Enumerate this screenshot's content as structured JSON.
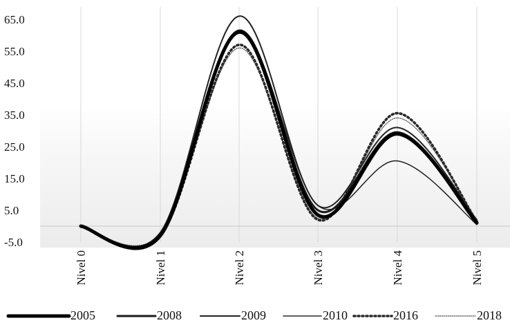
{
  "chart_data": {
    "type": "line",
    "categories": [
      "Nivel 0",
      "Nivel 1",
      "Nivel 2",
      "Nivel 3",
      "Nivel 4",
      "Nivel 5"
    ],
    "y_ticks": [
      "65.0",
      "55.0",
      "45.0",
      "35.0",
      "25.0",
      "15.0",
      "5.0",
      "-5.0"
    ],
    "ylim": [
      -5,
      65
    ],
    "series": [
      {
        "name": "2005",
        "values": [
          0.0,
          -3.0,
          61.0,
          3.5,
          29.0,
          1.0
        ]
      },
      {
        "name": "2008",
        "values": [
          0.0,
          -2.5,
          61.5,
          5.0,
          29.5,
          1.5
        ]
      },
      {
        "name": "2009",
        "values": [
          0.0,
          -2.0,
          66.0,
          6.5,
          31.0,
          2.0
        ]
      },
      {
        "name": "2010",
        "values": [
          0.0,
          -3.5,
          61.0,
          6.5,
          20.5,
          0.5
        ]
      },
      {
        "name": "2016",
        "values": [
          0.0,
          -3.0,
          57.0,
          2.0,
          35.5,
          1.5
        ]
      },
      {
        "name": "2018",
        "values": [
          0.0,
          -2.5,
          56.0,
          2.5,
          34.0,
          2.0
        ]
      }
    ],
    "styles": {
      "2005": {
        "color": "#000000",
        "width": 5.0,
        "dash": ""
      },
      "2008": {
        "color": "#1a1a1a",
        "width": 3.0,
        "dash": ""
      },
      "2009": {
        "color": "#222222",
        "width": 2.0,
        "dash": ""
      },
      "2010": {
        "color": "#2a2a2a",
        "width": 1.6,
        "dash": ""
      },
      "2016": {
        "color": "#2a2a2a",
        "width": 3.6,
        "dash": "2 4"
      },
      "2018": {
        "color": "#555555",
        "width": 1.2,
        "dash": "1.5 1.5"
      }
    },
    "legend_position": "bottom",
    "grid": "vertical"
  }
}
